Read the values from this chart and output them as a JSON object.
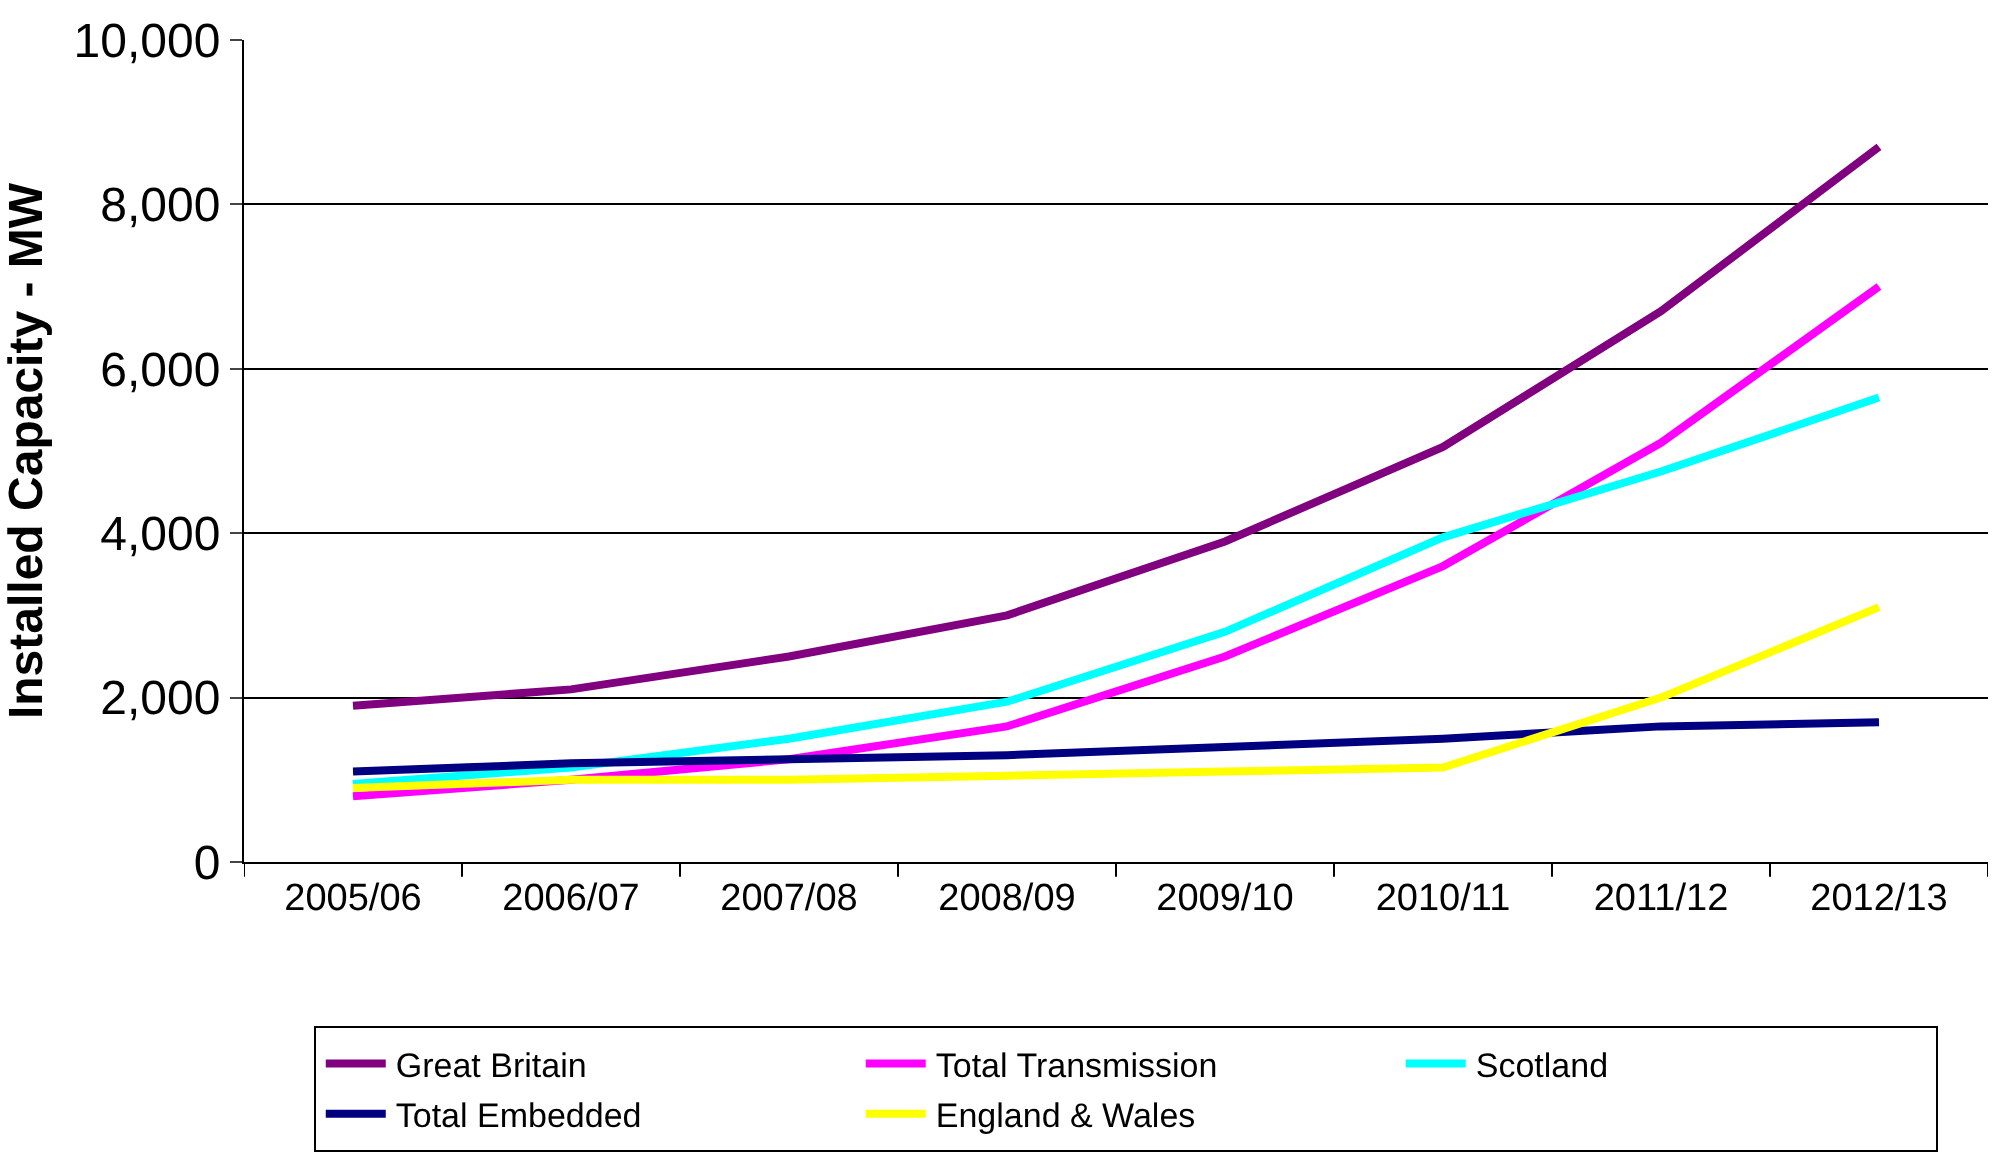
{
  "chart_data": {
    "type": "line",
    "ylabel": "Installed Capacity - MW",
    "categories": [
      "2005/06",
      "2006/07",
      "2007/08",
      "2008/09",
      "2009/10",
      "2010/11",
      "2011/12",
      "2012/13"
    ],
    "series": [
      {
        "name": "Great Britain",
        "color": "#800080",
        "values": [
          1900,
          2100,
          2500,
          3000,
          3900,
          5050,
          6700,
          8700
        ]
      },
      {
        "name": "Total Transmission",
        "color": "#ff00ff",
        "values": [
          800,
          1000,
          1250,
          1650,
          2500,
          3600,
          5100,
          7000
        ]
      },
      {
        "name": "Scotland",
        "color": "#00ffff",
        "values": [
          950,
          1150,
          1500,
          1950,
          2800,
          3950,
          4750,
          5650
        ]
      },
      {
        "name": "Total Embedded",
        "color": "#000080",
        "values": [
          1100,
          1200,
          1250,
          1300,
          1400,
          1500,
          1650,
          1700
        ]
      },
      {
        "name": "England & Wales",
        "color": "#ffff00",
        "values": [
          900,
          1000,
          1000,
          1050,
          1100,
          1150,
          2000,
          3100
        ]
      }
    ],
    "ylim": [
      0,
      10000
    ],
    "yticks": [
      {
        "value": 0,
        "label": "0"
      },
      {
        "value": 2000,
        "label": "2,000"
      },
      {
        "value": 4000,
        "label": "4,000"
      },
      {
        "value": 6000,
        "label": "6,000"
      },
      {
        "value": 8000,
        "label": "8,000"
      },
      {
        "value": 10000,
        "label": "10,000"
      }
    ],
    "grid": "y",
    "legend": "bottom",
    "marker": "none",
    "line_style": "solid"
  }
}
